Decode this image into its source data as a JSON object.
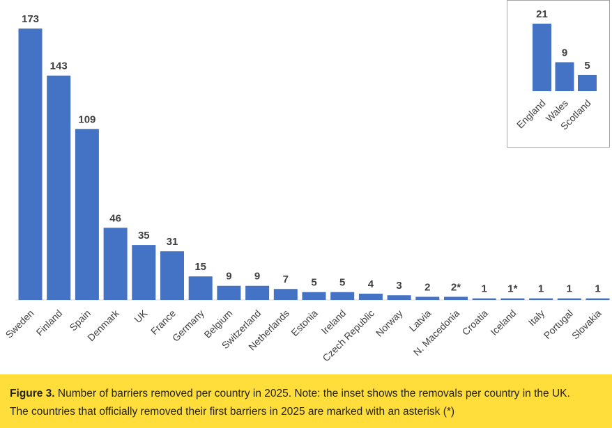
{
  "chart_data": [
    {
      "type": "bar",
      "categories": [
        "Sweden",
        "Finland",
        "Spain",
        "Denmark",
        "UK",
        "France",
        "Germany",
        "Belgium",
        "Switzerland",
        "Netherlands",
        "Estonia",
        "Ireland",
        "Czech Republic",
        "Norway",
        "Latvia",
        "N. Macedonia",
        "Croatia",
        "Iceland",
        "Italy",
        "Portugal",
        "Slovakia"
      ],
      "values": [
        173,
        143,
        109,
        46,
        35,
        31,
        15,
        9,
        9,
        7,
        5,
        5,
        4,
        3,
        2,
        2,
        1,
        1,
        1,
        1,
        1
      ],
      "data_labels": [
        "173",
        "143",
        "109",
        "46",
        "35",
        "31",
        "15",
        "9",
        "9",
        "7",
        "5",
        "5",
        "4",
        "3",
        "2",
        "2*",
        "1",
        "1*",
        "1",
        "1",
        "1"
      ],
      "ylim": [
        0,
        173
      ],
      "grid": false,
      "color": "#4472c4"
    },
    {
      "type": "bar",
      "categories": [
        "England",
        "Wales",
        "Scotland"
      ],
      "values": [
        21,
        9,
        5
      ],
      "data_labels": [
        "21",
        "9",
        "5"
      ],
      "ylim": [
        0,
        21
      ],
      "grid": false,
      "color": "#4472c4"
    }
  ],
  "caption": {
    "label": "Figure 3.",
    "text_line1": " Number of barriers removed per country in 2025. Note: the inset shows the removals per country in the UK.",
    "text_line2": "The countries that officially removed their first barriers in 2025 are marked with an asterisk (*)"
  }
}
